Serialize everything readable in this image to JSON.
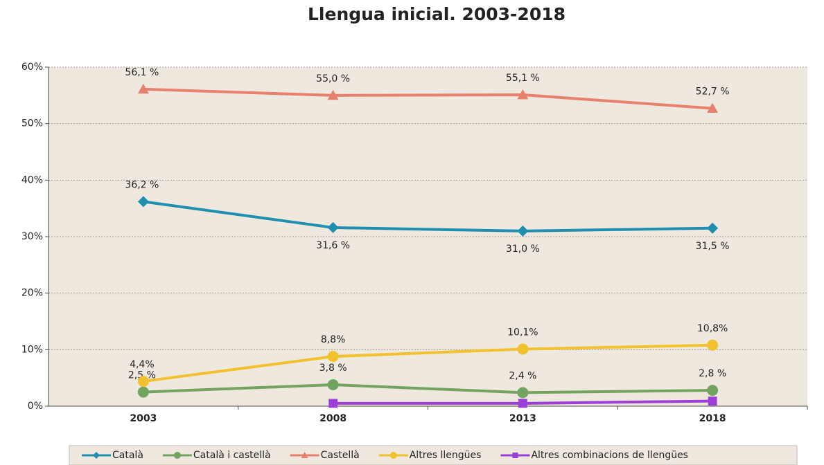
{
  "chart_data": {
    "type": "line",
    "title": "Llengua inicial. 2003-2018",
    "categories": [
      "2003",
      "2008",
      "2013",
      "2018"
    ],
    "ylim": [
      0,
      60
    ],
    "yticks": [
      {
        "value": 0,
        "label": "0%"
      },
      {
        "value": 10,
        "label": "10%"
      },
      {
        "value": 20,
        "label": "20%"
      },
      {
        "value": 30,
        "label": "30%"
      },
      {
        "value": 40,
        "label": "40%"
      },
      {
        "value": 50,
        "label": "50%"
      },
      {
        "value": 60,
        "label": "60%"
      }
    ],
    "grid": true,
    "legend": "bottom",
    "series": [
      {
        "name": "Català",
        "color": "#1f8fb0",
        "marker": "diamond",
        "values": [
          36.2,
          31.6,
          31.0,
          31.5
        ],
        "value_labels": [
          "36,2 %",
          "31,6 %",
          "31,0 %",
          "31,5 %"
        ]
      },
      {
        "name": "Català i castellà",
        "color": "#72a35f",
        "marker": "circle",
        "values": [
          2.5,
          3.8,
          2.4,
          2.8
        ],
        "value_labels": [
          "2,5 %",
          "3,8 %",
          "2,4 %",
          "2,8 %"
        ]
      },
      {
        "name": "Castellà",
        "color": "#e8806e",
        "marker": "triangle",
        "values": [
          56.1,
          55.0,
          55.1,
          52.7
        ],
        "value_labels": [
          "56,1 %",
          "55,0 %",
          "55,1 %",
          "52,7 %"
        ]
      },
      {
        "name": "Altres llengües",
        "color": "#f2c12e",
        "marker": "circle",
        "values": [
          4.4,
          8.8,
          10.1,
          10.8
        ],
        "value_labels": [
          "4,4%",
          "8,8%",
          "10,1%",
          "10,8%"
        ]
      },
      {
        "name": "Altres combinacions de llengües",
        "color": "#9b3fd6",
        "marker": "square",
        "values": [
          null,
          0.5,
          0.5,
          0.9
        ]
      }
    ]
  }
}
